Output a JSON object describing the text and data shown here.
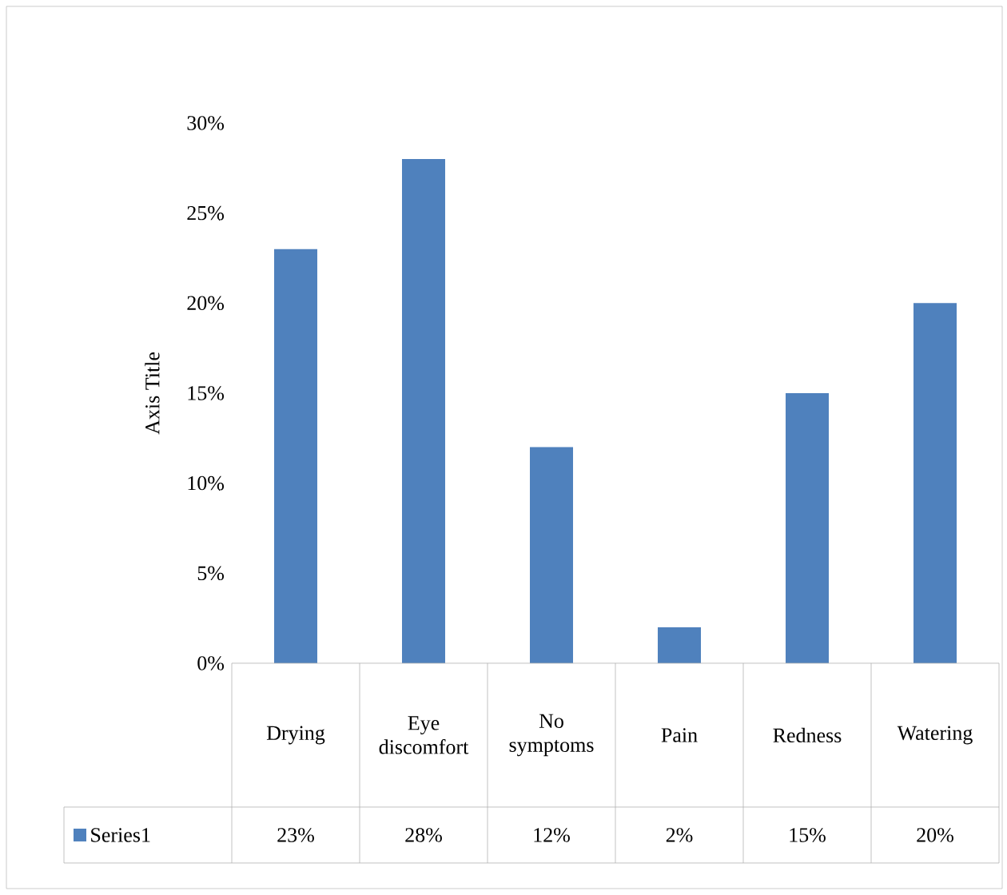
{
  "chart_data": {
    "type": "bar",
    "ylabel": "Axis Title",
    "categories": [
      "Drying",
      "Eye discomfort",
      "No symptoms",
      "Pain",
      "Redness",
      "Watering"
    ],
    "series": [
      {
        "name": "Series1",
        "color": "#4f81bd",
        "values": [
          23,
          28,
          12,
          2,
          15,
          20
        ],
        "value_labels": [
          "23%",
          "28%",
          "12%",
          "2%",
          "15%",
          "20%"
        ]
      }
    ],
    "ylim": [
      0,
      30
    ],
    "yticks": [
      {
        "value": 0,
        "label": "0%"
      },
      {
        "value": 5,
        "label": "5%"
      },
      {
        "value": 10,
        "label": "10%"
      },
      {
        "value": 15,
        "label": "15%"
      },
      {
        "value": 20,
        "label": "20%"
      },
      {
        "value": 25,
        "label": "25%"
      },
      {
        "value": 30,
        "label": "30%"
      }
    ],
    "grid": false,
    "legend": "bottom"
  }
}
